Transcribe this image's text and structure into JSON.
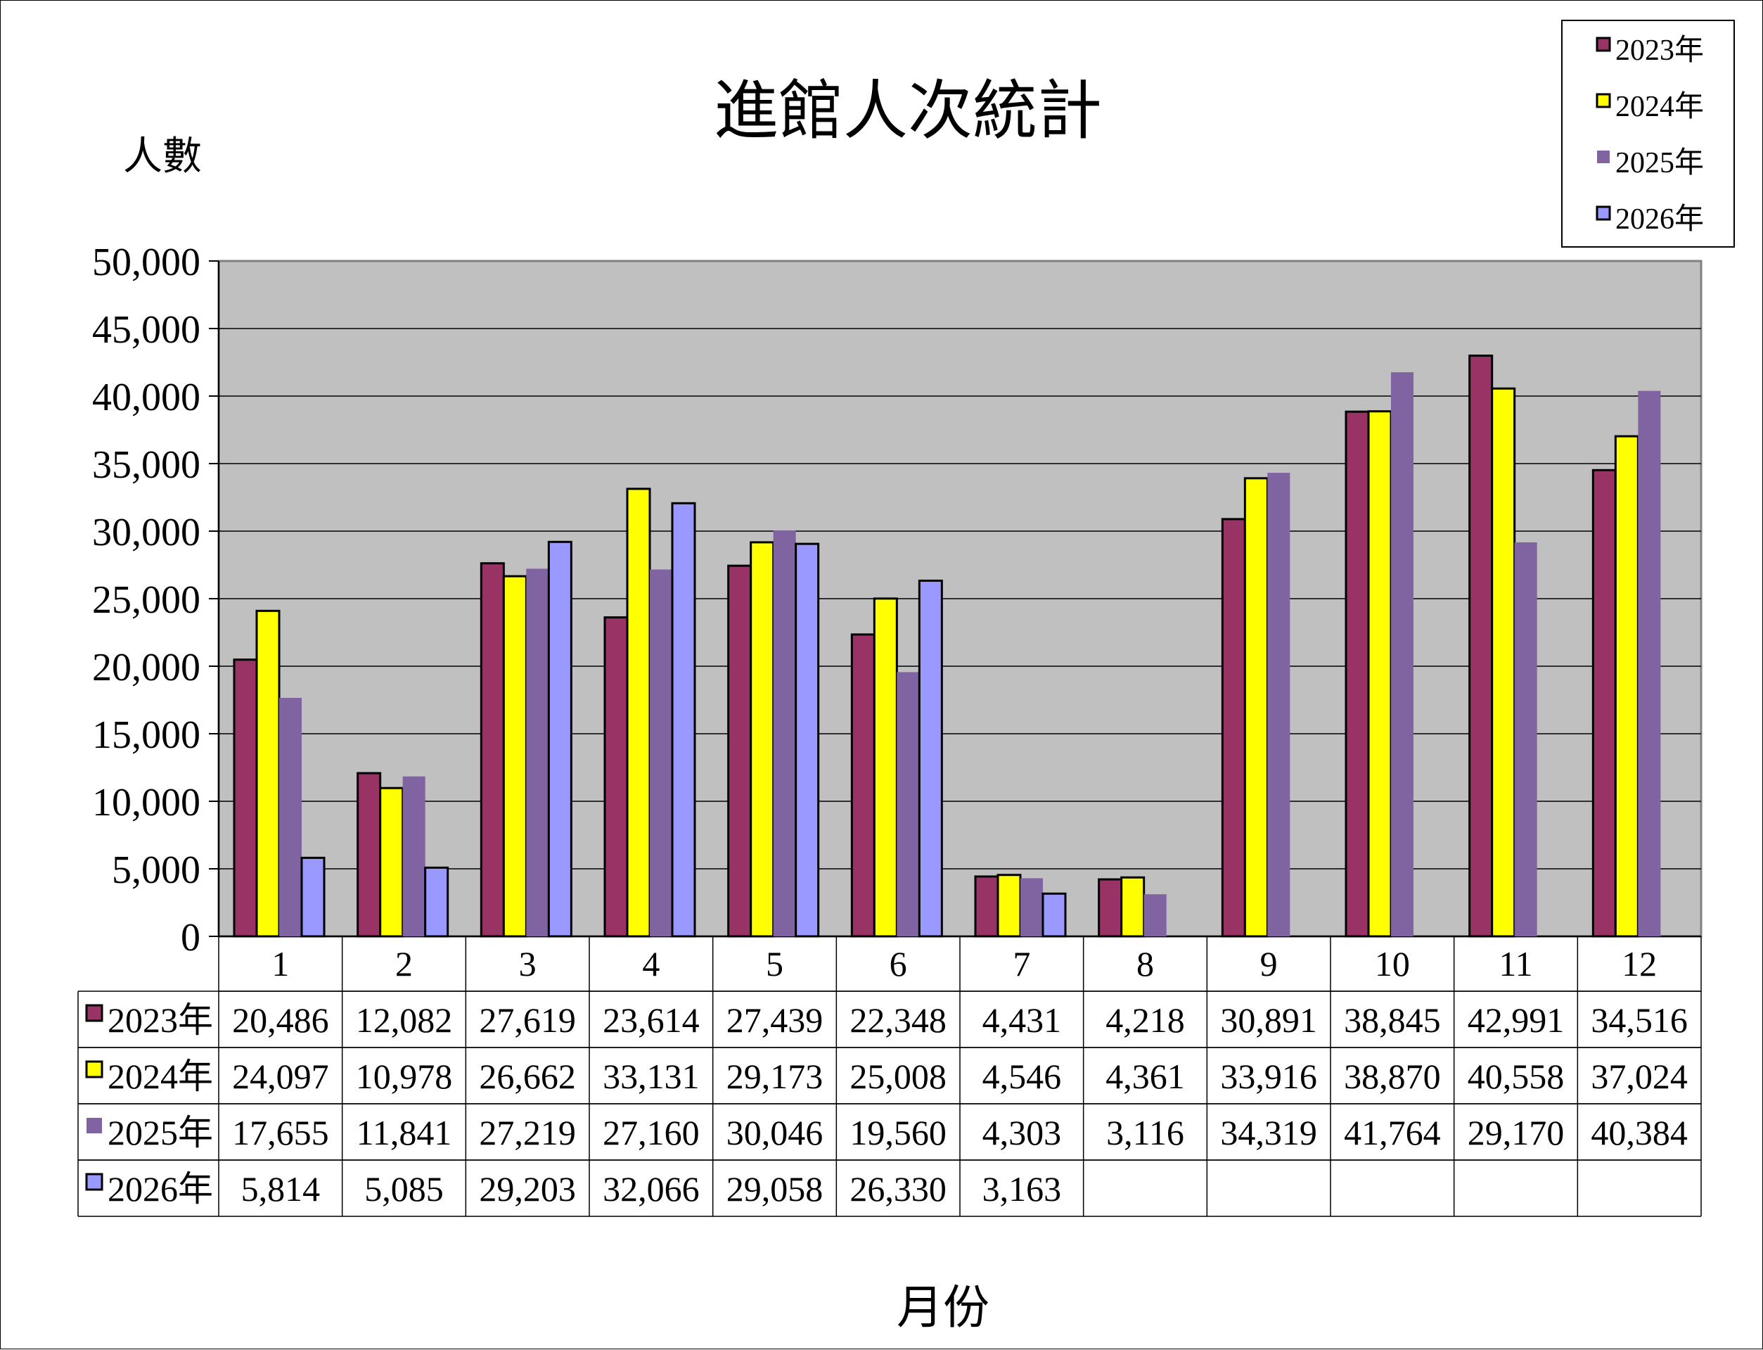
{
  "chart_data": {
    "type": "bar",
    "title": "進館人次統計",
    "ylabel": "人數",
    "xlabel": "月份",
    "ylim": [
      0,
      50000
    ],
    "yticks": [
      0,
      5000,
      10000,
      15000,
      20000,
      25000,
      30000,
      35000,
      40000,
      45000,
      50000
    ],
    "ytick_labels": [
      "0",
      "5,000",
      "10,000",
      "15,000",
      "20,000",
      "25,000",
      "30,000",
      "35,000",
      "40,000",
      "45,000",
      "50,000"
    ],
    "grid": true,
    "legend_position": "top-right",
    "plot_background": "#c0c0c0",
    "categories": [
      "1",
      "2",
      "3",
      "4",
      "5",
      "6",
      "7",
      "8",
      "9",
      "10",
      "11",
      "12"
    ],
    "series": [
      {
        "name": "2023年",
        "color": "#993366",
        "outlined": true,
        "values": [
          20486,
          12082,
          27619,
          23614,
          27439,
          22348,
          4431,
          4218,
          30891,
          38845,
          42991,
          34516
        ],
        "labels": [
          "20,486",
          "12,082",
          "27,619",
          "23,614",
          "27,439",
          "22,348",
          "4,431",
          "4,218",
          "30,891",
          "38,845",
          "42,991",
          "34,516"
        ]
      },
      {
        "name": "2024年",
        "color": "#ffff00",
        "outlined": true,
        "values": [
          24097,
          10978,
          26662,
          33131,
          29173,
          25008,
          4546,
          4361,
          33916,
          38870,
          40558,
          37024
        ],
        "labels": [
          "24,097",
          "10,978",
          "26,662",
          "33,131",
          "29,173",
          "25,008",
          "4,546",
          "4,361",
          "33,916",
          "38,870",
          "40,558",
          "37,024"
        ]
      },
      {
        "name": "2025年",
        "color": "#8064a2",
        "outlined": false,
        "values": [
          17655,
          11841,
          27219,
          27160,
          30046,
          19560,
          4303,
          3116,
          34319,
          41764,
          29170,
          40384
        ],
        "labels": [
          "17,655",
          "11,841",
          "27,219",
          "27,160",
          "30,046",
          "19,560",
          "4,303",
          "3,116",
          "34,319",
          "41,764",
          "29,170",
          "40,384"
        ]
      },
      {
        "name": "2026年",
        "color": "#9999ff",
        "outlined": true,
        "values": [
          5814,
          5085,
          29203,
          32066,
          29058,
          26330,
          3163,
          null,
          null,
          null,
          null,
          null
        ],
        "labels": [
          "5,814",
          "5,085",
          "29,203",
          "32,066",
          "29,058",
          "26,330",
          "3,163",
          "",
          "",
          "",
          "",
          ""
        ]
      }
    ]
  }
}
